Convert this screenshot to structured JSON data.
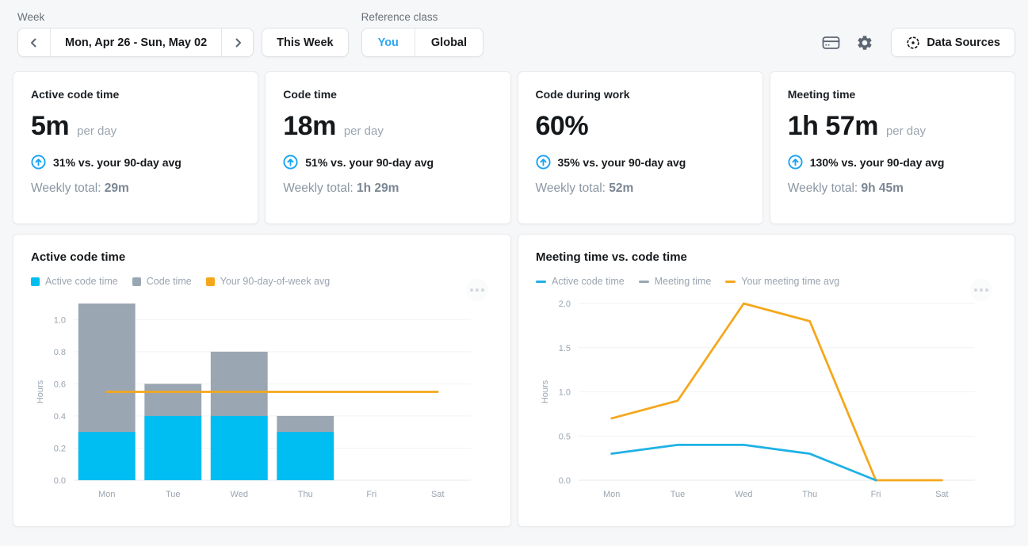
{
  "topbar": {
    "week_label": "Week",
    "date_range": "Mon, Apr 26 - Sun, May 02",
    "this_week_label": "This Week",
    "reference_class_label": "Reference class",
    "reference_you": "You",
    "reference_global": "Global",
    "selected_reference": "You",
    "data_sources_label": "Data Sources",
    "icons": [
      "billing-card-icon",
      "gear-icon",
      "data-sources-scan-icon"
    ]
  },
  "colors": {
    "accent_blue": "#2ba6f2",
    "bar_blue": "#00bdf2",
    "bar_gray": "#9aa6b2",
    "line_orange": "#f5a71b",
    "line_blue": "#1fb1e6",
    "page_bg": "#f6f7f8",
    "muted_text": "#9aa4af"
  },
  "stat_cards": [
    {
      "title": "Active code time",
      "value": "5m",
      "unit": "per day",
      "delta": "31% vs. your 90-day avg",
      "delta_direction": "up",
      "weekly_label": "Weekly total:",
      "weekly_value": "29m"
    },
    {
      "title": "Code time",
      "value": "18m",
      "unit": "per day",
      "delta": "51% vs. your 90-day avg",
      "delta_direction": "up",
      "weekly_label": "Weekly total:",
      "weekly_value": "1h 29m"
    },
    {
      "title": "Code during work",
      "value": "60%",
      "unit": "",
      "delta": "35% vs. your 90-day avg",
      "delta_direction": "up",
      "weekly_label": "Weekly total:",
      "weekly_value": "52m"
    },
    {
      "title": "Meeting time",
      "value": "1h 57m",
      "unit": "per day",
      "delta": "130% vs. your 90-day avg",
      "delta_direction": "up",
      "weekly_label": "Weekly total:",
      "weekly_value": "9h 45m"
    }
  ],
  "charts": [
    {
      "title": "Active code time",
      "menu_icon": "ellipsis-icon",
      "legend": [
        {
          "label": "Active code time",
          "color": "#00bdf2",
          "marker": "square"
        },
        {
          "label": "Code time",
          "color": "#9aa6b2",
          "marker": "square"
        },
        {
          "label": "Your 90-day-of-week avg",
          "color": "#f5a71b",
          "marker": "square"
        }
      ],
      "chart_data": {
        "type": "bar",
        "categories": [
          "Mon",
          "Tue",
          "Wed",
          "Thu",
          "Fri",
          "Sat"
        ],
        "ylabel": "Hours",
        "ylim": [
          0,
          1.1
        ],
        "yticks": [
          0,
          0.2,
          0.4,
          0.6,
          0.8,
          1.0
        ],
        "grid": true,
        "series": [
          {
            "name": "Code time",
            "kind": "bar",
            "color": "#9aa6b2",
            "values": [
              1.1,
              0.6,
              0.8,
              0.4,
              0,
              0
            ]
          },
          {
            "name": "Active code time",
            "kind": "bar",
            "color": "#00bdf2",
            "values": [
              0.3,
              0.4,
              0.4,
              0.3,
              0,
              0
            ]
          },
          {
            "name": "Your 90-day-of-week avg",
            "kind": "line",
            "color": "#f5a71b",
            "values": [
              0.55,
              0.55,
              0.55,
              0.55,
              0.55,
              0.55
            ]
          }
        ]
      }
    },
    {
      "title": "Meeting time vs. code time",
      "menu_icon": "ellipsis-icon",
      "legend": [
        {
          "label": "Active code time",
          "color": "#1fb1e6",
          "marker": "dash"
        },
        {
          "label": "Meeting time",
          "color": "#9aa6b2",
          "marker": "dash"
        },
        {
          "label": "Your meeting time avg",
          "color": "#f5a71b",
          "marker": "dash"
        }
      ],
      "chart_data": {
        "type": "line",
        "categories": [
          "Mon",
          "Tue",
          "Wed",
          "Thu",
          "Fri",
          "Sat"
        ],
        "ylabel": "Hours",
        "ylim": [
          0,
          2.0
        ],
        "yticks": [
          0,
          0.5,
          1.0,
          1.5,
          2.0
        ],
        "grid": true,
        "series": [
          {
            "name": "Your meeting time avg",
            "kind": "line",
            "color": "#f5a71b",
            "values": [
              0.7,
              0.9,
              2.0,
              1.8,
              0,
              0
            ]
          },
          {
            "name": "Active code time",
            "kind": "line",
            "color": "#1fb1e6",
            "values": [
              0.3,
              0.4,
              0.4,
              0.3,
              0,
              null
            ]
          },
          {
            "name": "Meeting time",
            "kind": "line",
            "color": "#9aa6b2",
            "values": [
              null,
              null,
              null,
              null,
              null,
              null
            ]
          }
        ]
      }
    }
  ]
}
